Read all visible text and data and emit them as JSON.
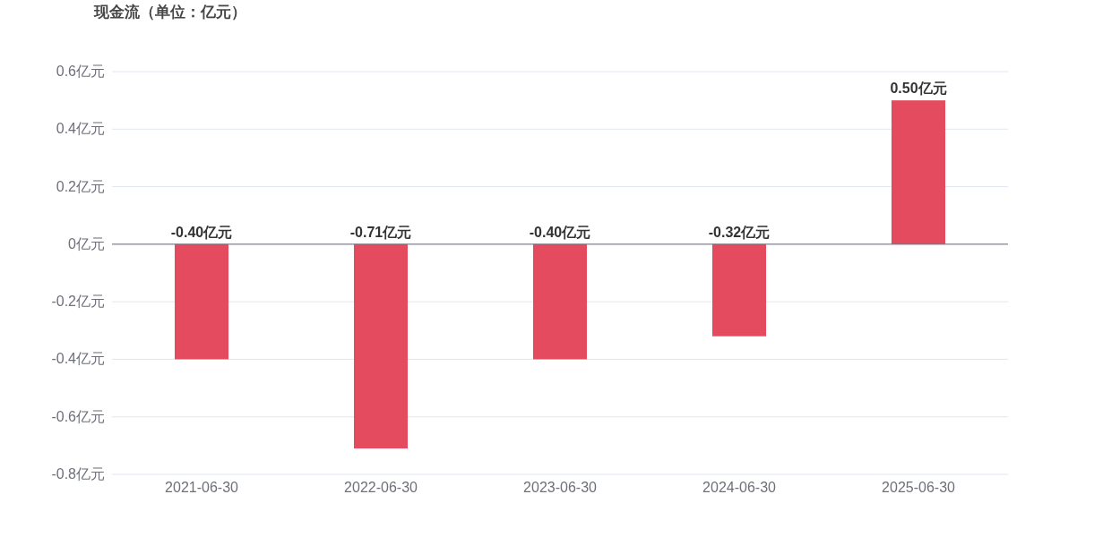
{
  "chart_data": {
    "type": "bar",
    "title": "现金流（单位：亿元）",
    "categories": [
      "2021-06-30",
      "2022-06-30",
      "2023-06-30",
      "2024-06-30",
      "2025-06-30"
    ],
    "values": [
      -0.4,
      -0.71,
      -0.4,
      -0.32,
      0.5
    ],
    "value_labels": [
      "-0.40亿元",
      "-0.71亿元",
      "-0.40亿元",
      "-0.32亿元",
      "0.50亿元"
    ],
    "color": "#e54b5f",
    "ylim": [
      -0.8,
      0.6
    ],
    "yticks": [
      {
        "value": 0.6,
        "label": "0.6亿元"
      },
      {
        "value": 0.4,
        "label": "0.4亿元"
      },
      {
        "value": 0.2,
        "label": "0.2亿元"
      },
      {
        "value": 0,
        "label": "0亿元"
      },
      {
        "value": -0.2,
        "label": "-0.2亿元"
      },
      {
        "value": -0.4,
        "label": "-0.4亿元"
      },
      {
        "value": -0.6,
        "label": "-0.6亿元"
      },
      {
        "value": -0.8,
        "label": "-0.8亿元"
      }
    ],
    "grid": "y"
  }
}
